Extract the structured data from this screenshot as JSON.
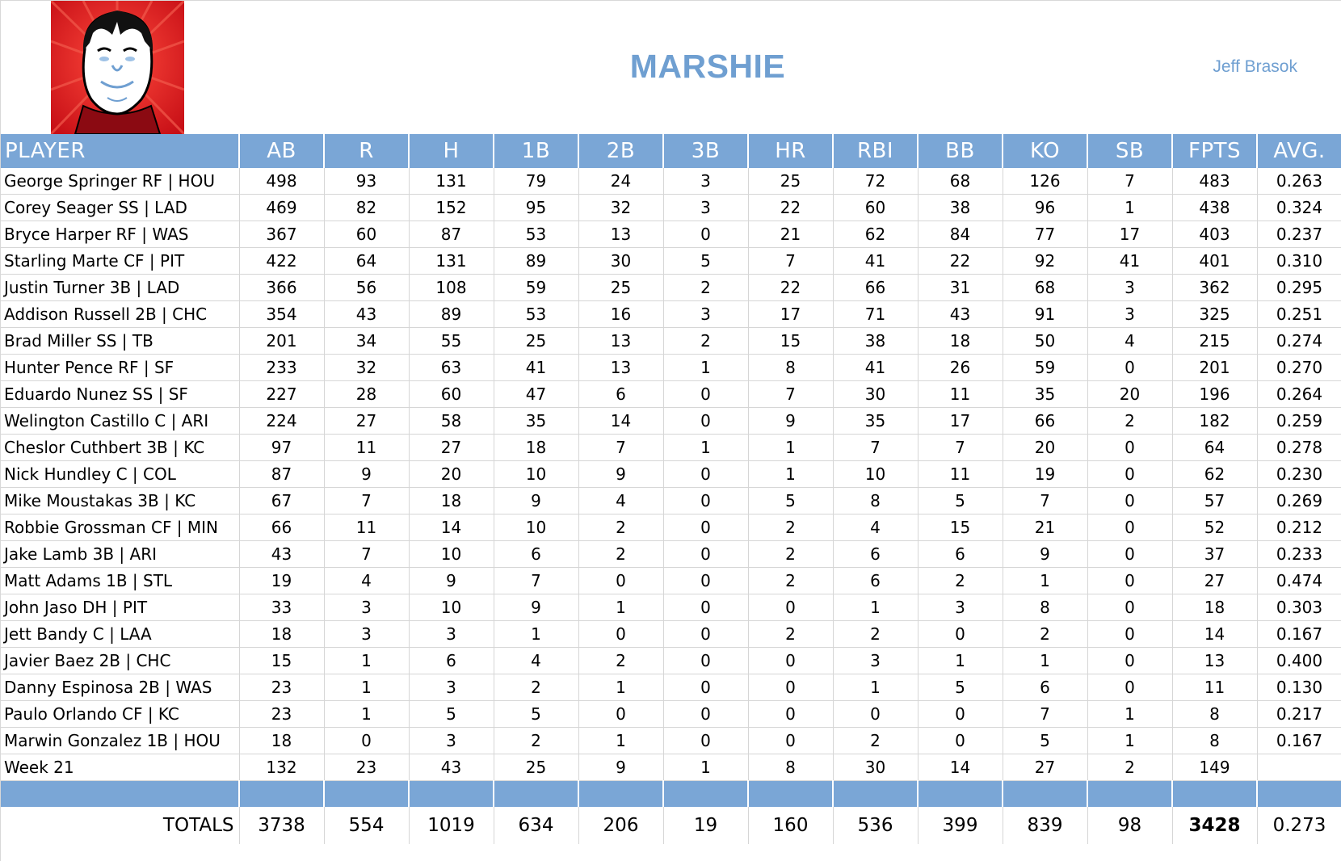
{
  "header": {
    "team_name": "MARSHIE",
    "owner": "Jeff Brasok"
  },
  "table": {
    "columns": [
      "PLAYER",
      "AB",
      "R",
      "H",
      "1B",
      "2B",
      "3B",
      "HR",
      "RBI",
      "BB",
      "KO",
      "SB",
      "FPTS",
      "AVG."
    ],
    "rows": [
      [
        "George Springer RF | HOU",
        "498",
        "93",
        "131",
        "79",
        "24",
        "3",
        "25",
        "72",
        "68",
        "126",
        "7",
        "483",
        "0.263"
      ],
      [
        "Corey Seager SS | LAD",
        "469",
        "82",
        "152",
        "95",
        "32",
        "3",
        "22",
        "60",
        "38",
        "96",
        "1",
        "438",
        "0.324"
      ],
      [
        "Bryce Harper RF | WAS",
        "367",
        "60",
        "87",
        "53",
        "13",
        "0",
        "21",
        "62",
        "84",
        "77",
        "17",
        "403",
        "0.237"
      ],
      [
        "Starling Marte CF | PIT",
        "422",
        "64",
        "131",
        "89",
        "30",
        "5",
        "7",
        "41",
        "22",
        "92",
        "41",
        "401",
        "0.310"
      ],
      [
        "Justin Turner 3B | LAD",
        "366",
        "56",
        "108",
        "59",
        "25",
        "2",
        "22",
        "66",
        "31",
        "68",
        "3",
        "362",
        "0.295"
      ],
      [
        "Addison Russell 2B | CHC",
        "354",
        "43",
        "89",
        "53",
        "16",
        "3",
        "17",
        "71",
        "43",
        "91",
        "3",
        "325",
        "0.251"
      ],
      [
        "Brad Miller SS | TB",
        "201",
        "34",
        "55",
        "25",
        "13",
        "2",
        "15",
        "38",
        "18",
        "50",
        "4",
        "215",
        "0.274"
      ],
      [
        "Hunter Pence RF | SF",
        "233",
        "32",
        "63",
        "41",
        "13",
        "1",
        "8",
        "41",
        "26",
        "59",
        "0",
        "201",
        "0.270"
      ],
      [
        "Eduardo Nunez SS | SF",
        "227",
        "28",
        "60",
        "47",
        "6",
        "0",
        "7",
        "30",
        "11",
        "35",
        "20",
        "196",
        "0.264"
      ],
      [
        "Welington Castillo C | ARI",
        "224",
        "27",
        "58",
        "35",
        "14",
        "0",
        "9",
        "35",
        "17",
        "66",
        "2",
        "182",
        "0.259"
      ],
      [
        "Cheslor Cuthbert 3B | KC",
        "97",
        "11",
        "27",
        "18",
        "7",
        "1",
        "1",
        "7",
        "7",
        "20",
        "0",
        "64",
        "0.278"
      ],
      [
        "Nick Hundley C | COL",
        "87",
        "9",
        "20",
        "10",
        "9",
        "0",
        "1",
        "10",
        "11",
        "19",
        "0",
        "62",
        "0.230"
      ],
      [
        "Mike Moustakas 3B | KC",
        "67",
        "7",
        "18",
        "9",
        "4",
        "0",
        "5",
        "8",
        "5",
        "7",
        "0",
        "57",
        "0.269"
      ],
      [
        "Robbie Grossman CF | MIN",
        "66",
        "11",
        "14",
        "10",
        "2",
        "0",
        "2",
        "4",
        "15",
        "21",
        "0",
        "52",
        "0.212"
      ],
      [
        "Jake Lamb 3B | ARI",
        "43",
        "7",
        "10",
        "6",
        "2",
        "0",
        "2",
        "6",
        "6",
        "9",
        "0",
        "37",
        "0.233"
      ],
      [
        "Matt Adams 1B | STL",
        "19",
        "4",
        "9",
        "7",
        "0",
        "0",
        "2",
        "6",
        "2",
        "1",
        "0",
        "27",
        "0.474"
      ],
      [
        "John Jaso DH | PIT",
        "33",
        "3",
        "10",
        "9",
        "1",
        "0",
        "0",
        "1",
        "3",
        "8",
        "0",
        "18",
        "0.303"
      ],
      [
        "Jett Bandy C | LAA",
        "18",
        "3",
        "3",
        "1",
        "0",
        "0",
        "2",
        "2",
        "0",
        "2",
        "0",
        "14",
        "0.167"
      ],
      [
        "Javier Baez 2B | CHC",
        "15",
        "1",
        "6",
        "4",
        "2",
        "0",
        "0",
        "3",
        "1",
        "1",
        "0",
        "13",
        "0.400"
      ],
      [
        "Danny Espinosa 2B | WAS",
        "23",
        "1",
        "3",
        "2",
        "1",
        "0",
        "0",
        "1",
        "5",
        "6",
        "0",
        "11",
        "0.130"
      ],
      [
        "Paulo Orlando CF | KC",
        "23",
        "1",
        "5",
        "5",
        "0",
        "0",
        "0",
        "0",
        "0",
        "7",
        "1",
        "8",
        "0.217"
      ],
      [
        "Marwin Gonzalez 1B | HOU",
        "18",
        "0",
        "3",
        "2",
        "1",
        "0",
        "0",
        "2",
        "0",
        "5",
        "1",
        "8",
        "0.167"
      ],
      [
        "Week 21",
        "132",
        "23",
        "43",
        "25",
        "9",
        "1",
        "8",
        "30",
        "14",
        "27",
        "2",
        "149",
        ""
      ]
    ],
    "totals": [
      "TOTALS",
      "3738",
      "554",
      "1019",
      "634",
      "206",
      "19",
      "160",
      "536",
      "399",
      "839",
      "98",
      "3428",
      "0.273"
    ]
  },
  "colors": {
    "header_blue": "#7aa6d6",
    "title_blue": "#6f9fd1",
    "avatar_red": "#e0141b"
  },
  "icons": {
    "avatar": "team-avatar-cartoon-face"
  }
}
